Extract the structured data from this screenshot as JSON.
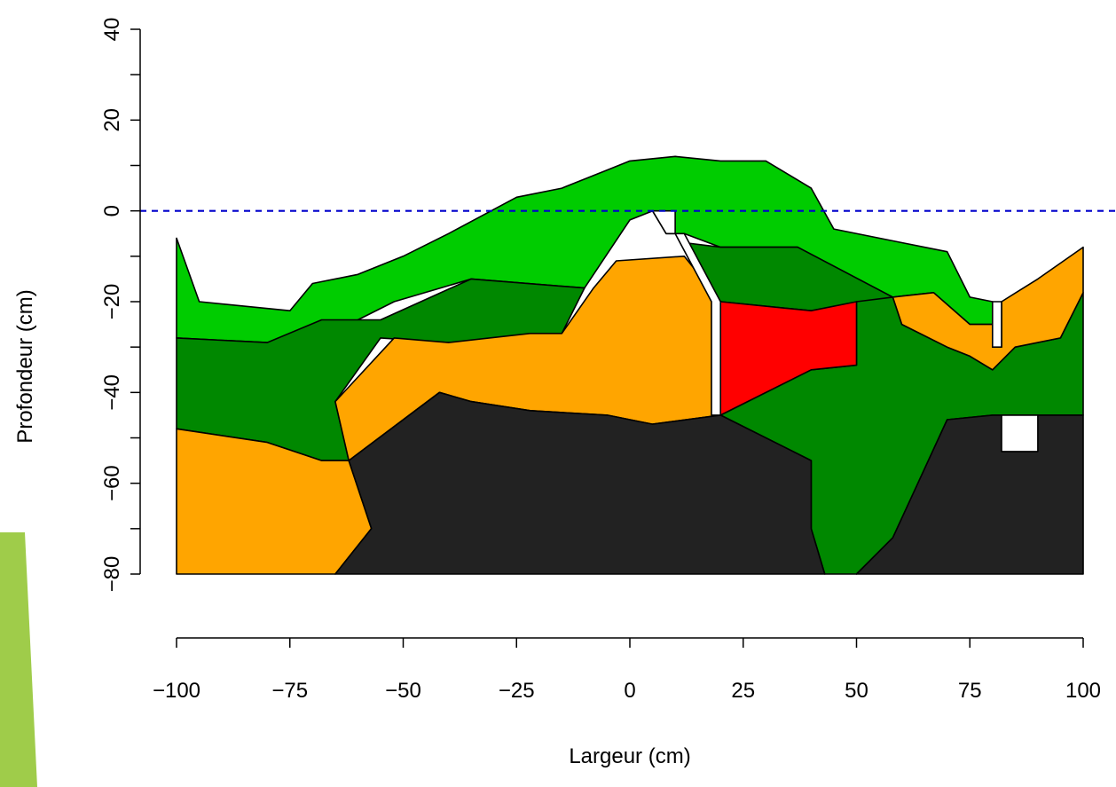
{
  "chart_data": {
    "type": "area",
    "title": "",
    "xlabel": "Largeur (cm)",
    "ylabel": "Profondeur (cm)",
    "xlim": [
      -100,
      100
    ],
    "ylim": [
      -80,
      40
    ],
    "grid": false,
    "x_ticks": [
      -100,
      -75,
      -50,
      -25,
      0,
      25,
      50,
      75,
      100
    ],
    "x_tick_labels": [
      "−100",
      "−75",
      "−50",
      "−25",
      "0",
      "25",
      "50",
      "75",
      "100"
    ],
    "y_ticks": [
      -80,
      -60,
      -40,
      -20,
      0,
      20,
      40
    ],
    "y_tick_labels": [
      "−80",
      "−60",
      "−40",
      "−20",
      "0",
      "20",
      "40"
    ],
    "reference_line": {
      "y": 0,
      "color": "#0000cc",
      "style": "dashed"
    },
    "colors": {
      "light_green": "#00cc00",
      "dark_green": "#008800",
      "orange": "#ffa500",
      "red": "#ff0000",
      "black": "#222222",
      "white": "#ffffff"
    },
    "regions": [
      {
        "color": "light_green",
        "points": [
          [
            -100,
            -6
          ],
          [
            -95,
            -20
          ],
          [
            -75,
            -22
          ],
          [
            -70,
            -16
          ],
          [
            -60,
            -14
          ],
          [
            -50,
            -10
          ],
          [
            -40,
            -5
          ],
          [
            -25,
            3
          ],
          [
            -15,
            5
          ],
          [
            -5,
            9
          ],
          [
            0,
            11
          ],
          [
            10,
            12
          ],
          [
            20,
            11
          ],
          [
            30,
            11
          ],
          [
            40,
            5
          ],
          [
            45,
            -4
          ],
          [
            60,
            -7
          ],
          [
            70,
            -9
          ],
          [
            75,
            -19
          ],
          [
            80,
            -20
          ],
          [
            80,
            -25
          ],
          [
            75,
            -25
          ],
          [
            67,
            -18
          ],
          [
            58,
            -19
          ],
          [
            37,
            -8
          ],
          [
            20,
            -8
          ],
          [
            12,
            -5
          ],
          [
            10,
            -5
          ],
          [
            8,
            -5
          ],
          [
            5,
            0
          ],
          [
            0,
            -2
          ],
          [
            -10,
            -17
          ],
          [
            -35,
            -15
          ],
          [
            -52,
            -20
          ],
          [
            -60,
            -24
          ],
          [
            -80,
            -29
          ],
          [
            -100,
            -28
          ]
        ]
      },
      {
        "color": "dark_green",
        "points": [
          [
            -100,
            -28
          ],
          [
            -80,
            -29
          ],
          [
            -68,
            -24
          ],
          [
            -55,
            -24
          ],
          [
            -35,
            -15
          ],
          [
            -10,
            -17
          ],
          [
            -15,
            -27
          ],
          [
            -40,
            -29
          ],
          [
            -55,
            -28
          ],
          [
            -65,
            -42
          ],
          [
            -62,
            -55
          ],
          [
            -68,
            -55
          ],
          [
            -80,
            -51
          ],
          [
            -100,
            -48
          ]
        ]
      },
      {
        "color": "dark_green",
        "points": [
          [
            12,
            -7
          ],
          [
            20,
            -8
          ],
          [
            37,
            -8
          ],
          [
            58,
            -19
          ],
          [
            40,
            -22
          ],
          [
            20,
            -20
          ]
        ]
      },
      {
        "color": "dark_green",
        "points": [
          [
            50,
            -20
          ],
          [
            58,
            -19
          ],
          [
            60,
            -25
          ],
          [
            70,
            -30
          ],
          [
            75,
            -32
          ],
          [
            80,
            -35
          ],
          [
            85,
            -30
          ],
          [
            95,
            -28
          ],
          [
            100,
            -18
          ],
          [
            100,
            -45
          ],
          [
            80,
            -45
          ],
          [
            70,
            -46
          ],
          [
            58,
            -72
          ],
          [
            50,
            -80
          ],
          [
            43,
            -80
          ],
          [
            40,
            -70
          ],
          [
            40,
            -55
          ],
          [
            20,
            -45
          ],
          [
            40,
            -35
          ],
          [
            50,
            -34
          ]
        ]
      },
      {
        "color": "orange",
        "points": [
          [
            -100,
            -48
          ],
          [
            -80,
            -51
          ],
          [
            -68,
            -55
          ],
          [
            -62,
            -55
          ],
          [
            -57,
            -70
          ],
          [
            -65,
            -80
          ],
          [
            -100,
            -80
          ]
        ]
      },
      {
        "color": "orange",
        "points": [
          [
            -65,
            -42
          ],
          [
            -52,
            -28
          ],
          [
            -40,
            -29
          ],
          [
            -22,
            -27
          ],
          [
            -15,
            -27
          ],
          [
            -8,
            -17
          ],
          [
            -3,
            -11
          ],
          [
            12,
            -10
          ],
          [
            20,
            -20
          ],
          [
            20,
            -45
          ],
          [
            5,
            -47
          ],
          [
            -5,
            -45
          ],
          [
            -22,
            -44
          ],
          [
            -35,
            -42
          ],
          [
            -42,
            -40
          ],
          [
            -62,
            -55
          ]
        ]
      },
      {
        "color": "orange",
        "points": [
          [
            58,
            -19
          ],
          [
            67,
            -18
          ],
          [
            75,
            -25
          ],
          [
            80,
            -25
          ],
          [
            80,
            -30
          ],
          [
            82,
            -30
          ],
          [
            82,
            -20
          ],
          [
            90,
            -15
          ],
          [
            100,
            -8
          ],
          [
            100,
            -18
          ],
          [
            95,
            -28
          ],
          [
            85,
            -30
          ],
          [
            80,
            -35
          ],
          [
            75,
            -32
          ],
          [
            70,
            -30
          ],
          [
            60,
            -25
          ]
        ]
      },
      {
        "color": "red",
        "points": [
          [
            20,
            -20
          ],
          [
            40,
            -22
          ],
          [
            50,
            -20
          ],
          [
            50,
            -34
          ],
          [
            40,
            -35
          ],
          [
            20,
            -45
          ]
        ]
      },
      {
        "color": "black",
        "points": [
          [
            -65,
            -80
          ],
          [
            -57,
            -70
          ],
          [
            -62,
            -55
          ],
          [
            -42,
            -40
          ],
          [
            -35,
            -42
          ],
          [
            -22,
            -44
          ],
          [
            -5,
            -45
          ],
          [
            5,
            -47
          ],
          [
            20,
            -45
          ],
          [
            40,
            -55
          ],
          [
            40,
            -70
          ],
          [
            43,
            -80
          ]
        ]
      },
      {
        "color": "black",
        "points": [
          [
            50,
            -80
          ],
          [
            58,
            -72
          ],
          [
            70,
            -46
          ],
          [
            80,
            -45
          ],
          [
            100,
            -45
          ],
          [
            100,
            -80
          ]
        ]
      },
      {
        "color": "white",
        "points": [
          [
            5,
            0
          ],
          [
            10,
            0
          ],
          [
            10,
            -5
          ],
          [
            8,
            -5
          ]
        ]
      },
      {
        "color": "white",
        "points": [
          [
            10,
            -5
          ],
          [
            12,
            -5
          ],
          [
            20,
            -20
          ],
          [
            20,
            -45
          ],
          [
            18,
            -45
          ],
          [
            18,
            -20
          ]
        ]
      },
      {
        "color": "white",
        "points": [
          [
            80,
            -20
          ],
          [
            82,
            -20
          ],
          [
            82,
            -30
          ],
          [
            80,
            -30
          ]
        ]
      },
      {
        "color": "white",
        "points": [
          [
            82,
            -45
          ],
          [
            90,
            -45
          ],
          [
            90,
            -53
          ],
          [
            82,
            -53
          ]
        ]
      }
    ]
  }
}
